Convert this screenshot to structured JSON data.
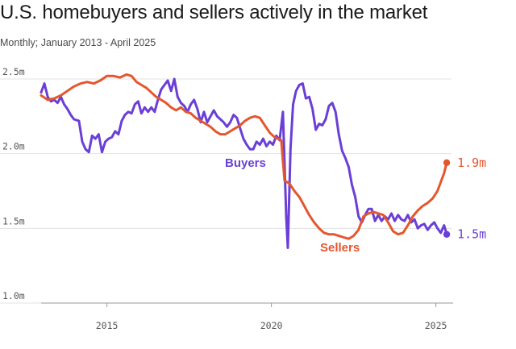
{
  "title": "U.S. homebuyers and sellers actively in the market",
  "subtitle": "Monthly; January 2013 - April 2025",
  "colors": {
    "buyers": "#6a3fd6",
    "sellers": "#e4572e",
    "grid": "#e3e3e3",
    "axis": "#9a9a9a"
  },
  "chart_data": {
    "type": "line",
    "xlim": [
      2013.0,
      2025.5
    ],
    "ylim": [
      1.0,
      2.5
    ],
    "y_ticks": [
      {
        "value": 2.5,
        "label": "2.5m"
      },
      {
        "value": 2.0,
        "label": "2.0m"
      },
      {
        "value": 1.5,
        "label": "1.5m"
      },
      {
        "value": 1.0,
        "label": "1.0m"
      }
    ],
    "x_ticks": [
      {
        "value": 2015,
        "label": "2015"
      },
      {
        "value": 2020,
        "label": "2020"
      },
      {
        "value": 2025,
        "label": "2025"
      }
    ],
    "grid": true,
    "series": [
      {
        "name": "Buyers",
        "end_label": "1.5m",
        "points": [
          [
            2013.0,
            2.41
          ],
          [
            2013.1,
            2.47
          ],
          [
            2013.2,
            2.38
          ],
          [
            2013.3,
            2.35
          ],
          [
            2013.4,
            2.36
          ],
          [
            2013.5,
            2.34
          ],
          [
            2013.6,
            2.38
          ],
          [
            2013.7,
            2.33
          ],
          [
            2013.8,
            2.3
          ],
          [
            2013.9,
            2.26
          ],
          [
            2014.0,
            2.23
          ],
          [
            2014.15,
            2.22
          ],
          [
            2014.25,
            2.08
          ],
          [
            2014.35,
            2.03
          ],
          [
            2014.45,
            2.01
          ],
          [
            2014.55,
            2.12
          ],
          [
            2014.65,
            2.1
          ],
          [
            2014.75,
            2.13
          ],
          [
            2014.85,
            2.01
          ],
          [
            2014.95,
            2.08
          ],
          [
            2015.05,
            2.1
          ],
          [
            2015.15,
            2.11
          ],
          [
            2015.25,
            2.15
          ],
          [
            2015.35,
            2.13
          ],
          [
            2015.45,
            2.22
          ],
          [
            2015.55,
            2.26
          ],
          [
            2015.65,
            2.28
          ],
          [
            2015.75,
            2.27
          ],
          [
            2015.85,
            2.33
          ],
          [
            2015.95,
            2.35
          ],
          [
            2016.05,
            2.27
          ],
          [
            2016.15,
            2.31
          ],
          [
            2016.25,
            2.28
          ],
          [
            2016.35,
            2.31
          ],
          [
            2016.45,
            2.28
          ],
          [
            2016.55,
            2.36
          ],
          [
            2016.65,
            2.43
          ],
          [
            2016.75,
            2.46
          ],
          [
            2016.85,
            2.49
          ],
          [
            2016.95,
            2.42
          ],
          [
            2017.05,
            2.5
          ],
          [
            2017.15,
            2.38
          ],
          [
            2017.25,
            2.34
          ],
          [
            2017.35,
            2.32
          ],
          [
            2017.45,
            2.28
          ],
          [
            2017.55,
            2.33
          ],
          [
            2017.65,
            2.36
          ],
          [
            2017.75,
            2.3
          ],
          [
            2017.85,
            2.21
          ],
          [
            2017.95,
            2.28
          ],
          [
            2018.05,
            2.21
          ],
          [
            2018.15,
            2.25
          ],
          [
            2018.25,
            2.29
          ],
          [
            2018.35,
            2.25
          ],
          [
            2018.45,
            2.23
          ],
          [
            2018.55,
            2.21
          ],
          [
            2018.65,
            2.18
          ],
          [
            2018.75,
            2.21
          ],
          [
            2018.85,
            2.26
          ],
          [
            2018.95,
            2.24
          ],
          [
            2019.05,
            2.17
          ],
          [
            2019.15,
            2.1
          ],
          [
            2019.25,
            2.06
          ],
          [
            2019.35,
            2.03
          ],
          [
            2019.45,
            2.03
          ],
          [
            2019.55,
            2.08
          ],
          [
            2019.65,
            2.06
          ],
          [
            2019.75,
            2.1
          ],
          [
            2019.85,
            2.05
          ],
          [
            2019.95,
            2.08
          ],
          [
            2020.05,
            2.06
          ],
          [
            2020.15,
            2.12
          ],
          [
            2020.25,
            2.09
          ],
          [
            2020.35,
            2.28
          ],
          [
            2020.45,
            1.58
          ],
          [
            2020.5,
            1.37
          ],
          [
            2020.58,
            2.03
          ],
          [
            2020.66,
            2.33
          ],
          [
            2020.75,
            2.42
          ],
          [
            2020.85,
            2.46
          ],
          [
            2020.95,
            2.47
          ],
          [
            2021.05,
            2.37
          ],
          [
            2021.15,
            2.38
          ],
          [
            2021.25,
            2.3
          ],
          [
            2021.35,
            2.16
          ],
          [
            2021.45,
            2.2
          ],
          [
            2021.55,
            2.19
          ],
          [
            2021.65,
            2.23
          ],
          [
            2021.75,
            2.32
          ],
          [
            2021.85,
            2.34
          ],
          [
            2021.95,
            2.28
          ],
          [
            2022.05,
            2.13
          ],
          [
            2022.15,
            2.02
          ],
          [
            2022.25,
            1.97
          ],
          [
            2022.35,
            1.91
          ],
          [
            2022.45,
            1.79
          ],
          [
            2022.55,
            1.71
          ],
          [
            2022.65,
            1.58
          ],
          [
            2022.75,
            1.54
          ],
          [
            2022.85,
            1.59
          ],
          [
            2022.95,
            1.63
          ],
          [
            2023.05,
            1.63
          ],
          [
            2023.15,
            1.55
          ],
          [
            2023.25,
            1.59
          ],
          [
            2023.35,
            1.55
          ],
          [
            2023.45,
            1.58
          ],
          [
            2023.55,
            1.56
          ],
          [
            2023.65,
            1.6
          ],
          [
            2023.75,
            1.55
          ],
          [
            2023.85,
            1.59
          ],
          [
            2023.95,
            1.56
          ],
          [
            2024.05,
            1.55
          ],
          [
            2024.15,
            1.59
          ],
          [
            2024.25,
            1.54
          ],
          [
            2024.35,
            1.56
          ],
          [
            2024.45,
            1.5
          ],
          [
            2024.55,
            1.52
          ],
          [
            2024.65,
            1.53
          ],
          [
            2024.75,
            1.49
          ],
          [
            2024.85,
            1.52
          ],
          [
            2024.95,
            1.54
          ],
          [
            2025.05,
            1.5
          ],
          [
            2025.15,
            1.47
          ],
          [
            2025.25,
            1.52
          ],
          [
            2025.33,
            1.46
          ]
        ]
      },
      {
        "name": "Sellers",
        "end_label": "1.9m",
        "points": [
          [
            2013.0,
            2.39
          ],
          [
            2013.2,
            2.36
          ],
          [
            2013.4,
            2.37
          ],
          [
            2013.6,
            2.39
          ],
          [
            2013.8,
            2.42
          ],
          [
            2014.0,
            2.45
          ],
          [
            2014.2,
            2.47
          ],
          [
            2014.4,
            2.48
          ],
          [
            2014.6,
            2.47
          ],
          [
            2014.8,
            2.49
          ],
          [
            2015.0,
            2.52
          ],
          [
            2015.2,
            2.52
          ],
          [
            2015.4,
            2.51
          ],
          [
            2015.6,
            2.53
          ],
          [
            2015.75,
            2.52
          ],
          [
            2015.9,
            2.48
          ],
          [
            2016.05,
            2.46
          ],
          [
            2016.2,
            2.44
          ],
          [
            2016.35,
            2.41
          ],
          [
            2016.5,
            2.38
          ],
          [
            2016.65,
            2.36
          ],
          [
            2016.8,
            2.34
          ],
          [
            2016.95,
            2.31
          ],
          [
            2017.1,
            2.29
          ],
          [
            2017.25,
            2.31
          ],
          [
            2017.4,
            2.28
          ],
          [
            2017.55,
            2.27
          ],
          [
            2017.7,
            2.24
          ],
          [
            2017.85,
            2.22
          ],
          [
            2018.0,
            2.2
          ],
          [
            2018.15,
            2.18
          ],
          [
            2018.3,
            2.15
          ],
          [
            2018.45,
            2.13
          ],
          [
            2018.6,
            2.13
          ],
          [
            2018.75,
            2.15
          ],
          [
            2018.9,
            2.17
          ],
          [
            2019.05,
            2.19
          ],
          [
            2019.2,
            2.22
          ],
          [
            2019.35,
            2.24
          ],
          [
            2019.5,
            2.25
          ],
          [
            2019.65,
            2.24
          ],
          [
            2019.8,
            2.19
          ],
          [
            2019.95,
            2.14
          ],
          [
            2020.1,
            2.11
          ],
          [
            2020.3,
            2.09
          ],
          [
            2020.4,
            1.82
          ],
          [
            2020.55,
            1.8
          ],
          [
            2020.7,
            1.75
          ],
          [
            2020.85,
            1.71
          ],
          [
            2021.0,
            1.65
          ],
          [
            2021.15,
            1.59
          ],
          [
            2021.3,
            1.54
          ],
          [
            2021.45,
            1.5
          ],
          [
            2021.6,
            1.47
          ],
          [
            2021.75,
            1.46
          ],
          [
            2021.9,
            1.46
          ],
          [
            2022.05,
            1.45
          ],
          [
            2022.2,
            1.44
          ],
          [
            2022.35,
            1.43
          ],
          [
            2022.5,
            1.45
          ],
          [
            2022.65,
            1.49
          ],
          [
            2022.8,
            1.58
          ],
          [
            2022.95,
            1.6
          ],
          [
            2023.1,
            1.61
          ],
          [
            2023.25,
            1.6
          ],
          [
            2023.4,
            1.59
          ],
          [
            2023.55,
            1.54
          ],
          [
            2023.7,
            1.48
          ],
          [
            2023.85,
            1.46
          ],
          [
            2024.0,
            1.47
          ],
          [
            2024.15,
            1.52
          ],
          [
            2024.3,
            1.58
          ],
          [
            2024.45,
            1.62
          ],
          [
            2024.6,
            1.65
          ],
          [
            2024.75,
            1.67
          ],
          [
            2024.9,
            1.7
          ],
          [
            2025.05,
            1.75
          ],
          [
            2025.15,
            1.81
          ],
          [
            2025.25,
            1.87
          ],
          [
            2025.33,
            1.94
          ]
        ]
      }
    ]
  }
}
